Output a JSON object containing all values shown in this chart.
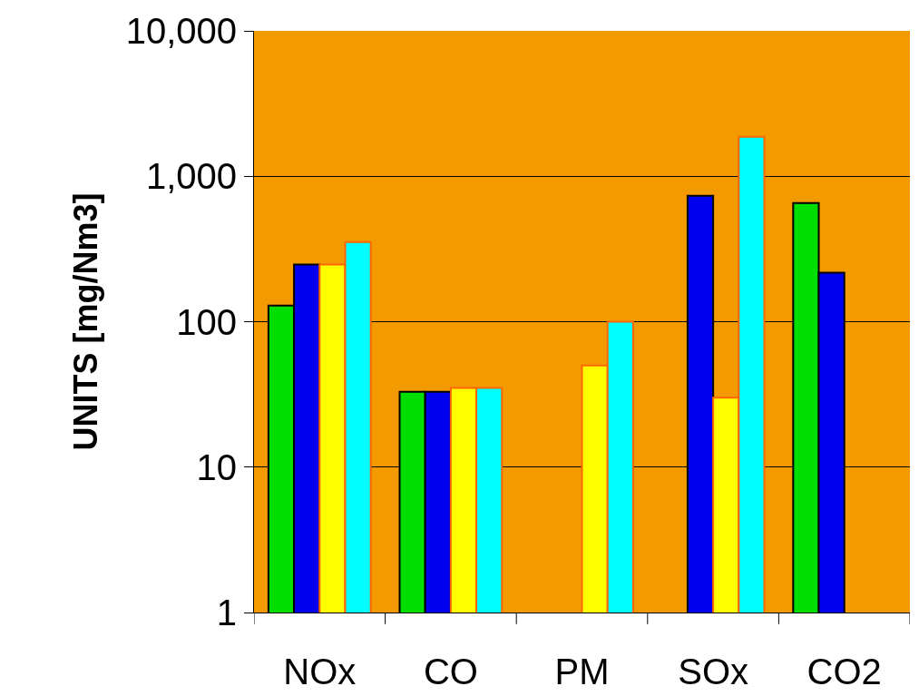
{
  "chart_data": {
    "type": "bar",
    "ylabel": "UNITS [mg/Nm3]",
    "categories": [
      "NOx",
      "CO",
      "PM",
      "SOx",
      "CO2"
    ],
    "series": [
      {
        "color": "#00dd00",
        "values": [
          129,
          33,
          null,
          null,
          655
        ]
      },
      {
        "color": "#0000ee",
        "values": [
          247,
          33,
          null,
          735,
          217
        ]
      },
      {
        "color": "#ffff00",
        "values": [
          247,
          35,
          50,
          30,
          null
        ]
      },
      {
        "color": "#00ffff",
        "values": [
          353,
          35,
          100,
          1866,
          null
        ]
      }
    ],
    "log": true,
    "ylim": [
      1,
      10000
    ],
    "yticks": [
      1,
      10,
      100,
      {
        "value": 1000,
        "label": "1,000"
      },
      {
        "value": 10000,
        "label": "10,000"
      }
    ],
    "grid": "y"
  }
}
